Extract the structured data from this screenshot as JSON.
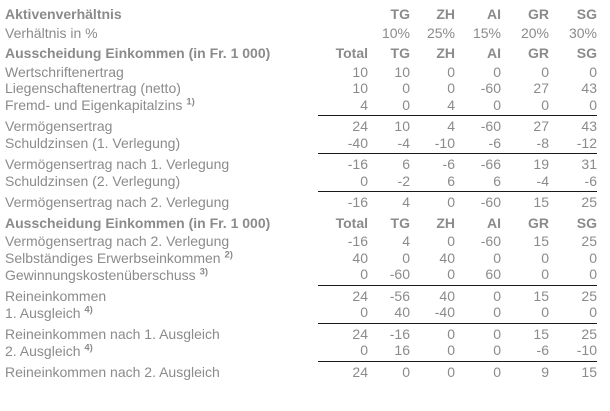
{
  "colors": {
    "text_gray": "#8b8b8b",
    "rule_black": "#1a1a1a",
    "background": "#ffffff"
  },
  "table": {
    "column_keys": [
      "Total",
      "TG",
      "ZH",
      "AI",
      "GR",
      "SG"
    ],
    "rows": [
      {
        "label": "Aktivenverhältnis",
        "style": "header",
        "cells": [
          "",
          "TG",
          "ZH",
          "AI",
          "GR",
          "SG"
        ]
      },
      {
        "label": "Verhältnis in %",
        "style": "normal",
        "cells": [
          "",
          "10%",
          "25%",
          "15%",
          "20%",
          "30%"
        ]
      },
      {
        "label": "Ausscheidung Einkommen (in Fr. 1 000)",
        "style": "header",
        "cells": [
          "Total",
          "TG",
          "ZH",
          "AI",
          "GR",
          "SG"
        ]
      },
      {
        "label": "Wertschriftenertrag",
        "style": "normal",
        "cells": [
          "10",
          "10",
          "0",
          "0",
          "0",
          "0"
        ]
      },
      {
        "label": "Liegenschaftenertrag (netto)",
        "style": "normal",
        "cells": [
          "10",
          "0",
          "0",
          "-60",
          "27",
          "43"
        ]
      },
      {
        "label": "Fremd- und Eigenkapitalzins",
        "sup": "1)",
        "style": "normal",
        "rule_below": true,
        "cells": [
          "4",
          "0",
          "4",
          "0",
          "0",
          "0"
        ]
      },
      {
        "label": "Vermögensertrag",
        "style": "normal",
        "cells": [
          "24",
          "10",
          "4",
          "-60",
          "27",
          "43"
        ]
      },
      {
        "label": "Schuldzinsen (1. Verlegung)",
        "style": "normal",
        "rule_below": true,
        "cells": [
          "-40",
          "-4",
          "-10",
          "-6",
          "-8",
          "-12"
        ]
      },
      {
        "label": "Vermögensertrag nach 1. Verlegung",
        "style": "normal",
        "cells": [
          "-16",
          "6",
          "-6",
          "-66",
          "19",
          "31"
        ]
      },
      {
        "label": "Schuldzinsen (2. Verlegung)",
        "style": "normal",
        "rule_below": true,
        "cells": [
          "0",
          "-2",
          "6",
          "6",
          "-4",
          "-6"
        ]
      },
      {
        "label": "Vermögensertrag nach 2. Verlegung",
        "style": "normal",
        "cells": [
          "-16",
          "4",
          "0",
          "-60",
          "15",
          "25"
        ]
      },
      {
        "label": "Ausscheidung Einkommen (in Fr. 1 000)",
        "style": "header",
        "cells": [
          "Total",
          "TG",
          "ZH",
          "AI",
          "GR",
          "SG"
        ]
      },
      {
        "label": "Vermögensertrag nach 2. Verlegung",
        "style": "normal",
        "cells": [
          "-16",
          "4",
          "0",
          "-60",
          "15",
          "25"
        ]
      },
      {
        "label": "Selbständiges Erwerbseinkommen",
        "sup": "2)",
        "style": "normal",
        "cells": [
          "40",
          "0",
          "40",
          "0",
          "0",
          "0"
        ]
      },
      {
        "label": "Gewinnungskostenüberschuss",
        "sup": "3)",
        "style": "normal",
        "rule_below": true,
        "cells": [
          "0",
          "-60",
          "0",
          "60",
          "0",
          "0"
        ]
      },
      {
        "label": "Reineinkommen",
        "style": "normal",
        "cells": [
          "24",
          "-56",
          "40",
          "0",
          "15",
          "25"
        ]
      },
      {
        "label": "1. Ausgleich",
        "sup": "4)",
        "style": "normal",
        "rule_below": true,
        "cells": [
          "0",
          "40",
          "-40",
          "0",
          "0",
          "0"
        ]
      },
      {
        "label": "Reineinkommen nach 1. Ausgleich",
        "style": "normal",
        "cells": [
          "24",
          "-16",
          "0",
          "0",
          "15",
          "25"
        ]
      },
      {
        "label": "2. Ausgleich",
        "sup": "4)",
        "style": "normal",
        "rule_below": true,
        "cells": [
          "0",
          "16",
          "0",
          "0",
          "-6",
          "-10"
        ]
      },
      {
        "label": "Reineinkommen nach 2. Ausgleich",
        "style": "normal",
        "cells": [
          "24",
          "0",
          "0",
          "0",
          "9",
          "15"
        ]
      }
    ]
  }
}
